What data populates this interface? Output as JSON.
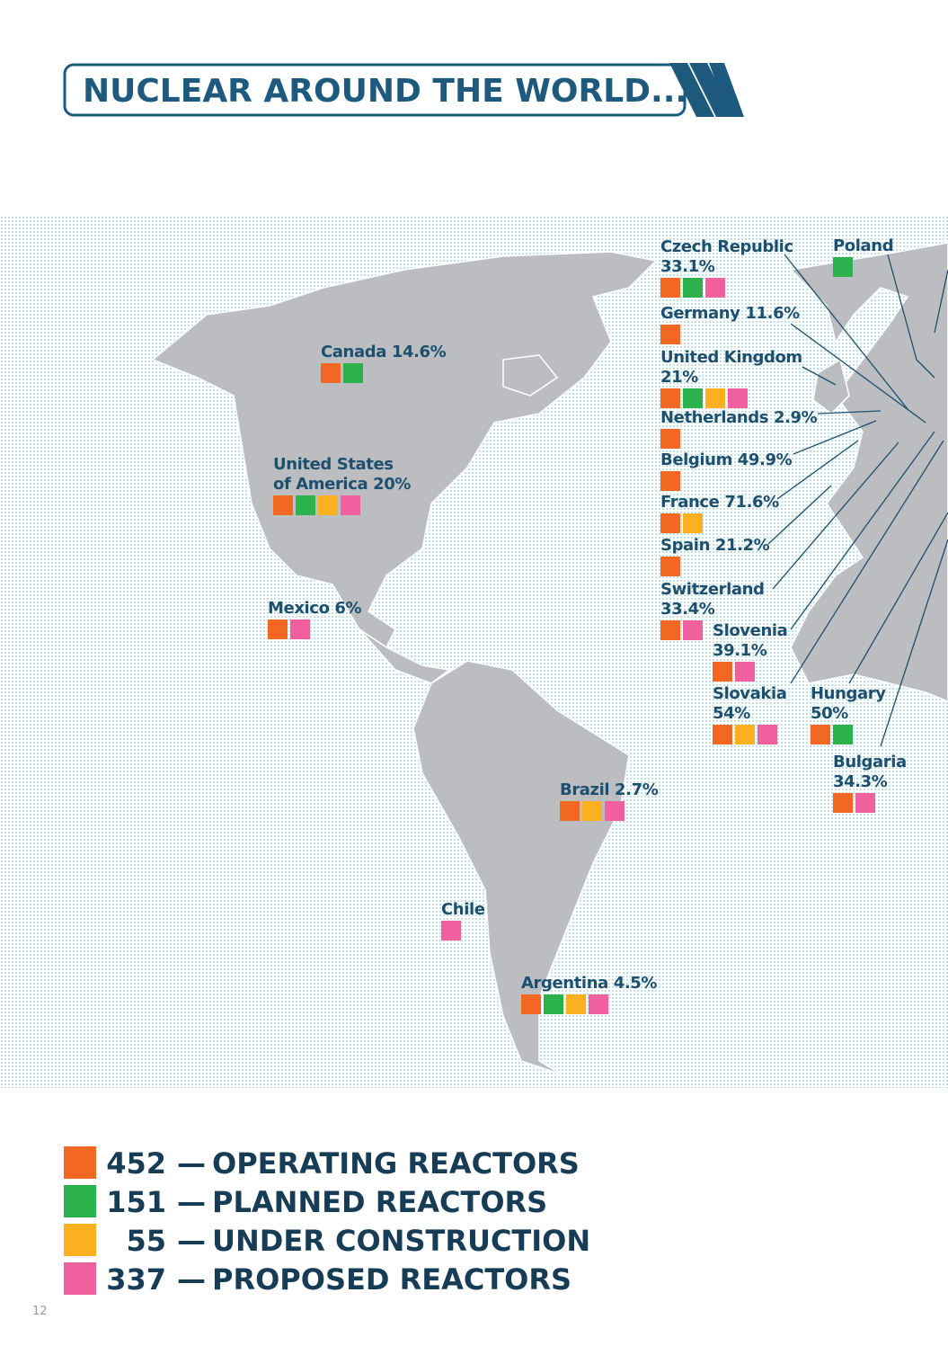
{
  "header": {
    "title": "NUCLEAR AROUND THE WORLD..."
  },
  "countries": [
    {
      "lines": [
        "Czech Republic",
        "33.1%"
      ],
      "squares": [
        0,
        1,
        3
      ]
    },
    {
      "lines": [
        "Poland"
      ],
      "squares": [
        1
      ]
    },
    {
      "lines": [
        "Germany 11.6%"
      ],
      "squares": [
        0
      ]
    },
    {
      "lines": [
        "United Kingdom",
        "21%"
      ],
      "squares": [
        0,
        1,
        2,
        3
      ]
    },
    {
      "lines": [
        "Netherlands 2.9%"
      ],
      "squares": [
        0
      ]
    },
    {
      "lines": [
        "Belgium 49.9%"
      ],
      "squares": [
        0
      ]
    },
    {
      "lines": [
        "France 71.6%"
      ],
      "squares": [
        0,
        2
      ]
    },
    {
      "lines": [
        "Spain 21.2%"
      ],
      "squares": [
        0
      ]
    },
    {
      "lines": [
        "Switzerland",
        "33.4%"
      ],
      "squares": [
        0,
        3
      ]
    },
    {
      "lines": [
        "Slovenia",
        "39.1%"
      ],
      "squares": [
        0,
        3
      ]
    },
    {
      "lines": [
        "Slovakia",
        "54%"
      ],
      "squares": [
        0,
        2,
        3
      ]
    },
    {
      "lines": [
        "Hungary",
        "50%"
      ],
      "squares": [
        0,
        1
      ]
    },
    {
      "lines": [
        "Bulgaria",
        "34.3%"
      ],
      "squares": [
        0,
        3
      ]
    },
    {
      "lines": [
        "Canada 14.6%"
      ],
      "squares": [
        0,
        1
      ]
    },
    {
      "lines": [
        "United States",
        "of America 20%"
      ],
      "squares": [
        0,
        1,
        2,
        3
      ]
    },
    {
      "lines": [
        "Mexico 6%"
      ],
      "squares": [
        0,
        3
      ]
    },
    {
      "lines": [
        "Brazil 2.7%"
      ],
      "squares": [
        0,
        2,
        3
      ]
    },
    {
      "lines": [
        "Chile"
      ],
      "squares": [
        3
      ]
    },
    {
      "lines": [
        "Argentina 4.5%"
      ],
      "squares": [
        0,
        1,
        2,
        3
      ]
    }
  ],
  "legend": {
    "separator": "—",
    "items": [
      {
        "count": 452,
        "label": "OPERATING REACTORS",
        "color": "#f26722"
      },
      {
        "count": 151,
        "label": "PLANNED REACTORS",
        "color": "#2bb24c"
      },
      {
        "count": 55,
        "label": "UNDER CONSTRUCTION",
        "color": "#fbb11f"
      },
      {
        "count": 337,
        "label": "PROPOSED REACTORS",
        "color": "#f0609e"
      }
    ]
  },
  "footer": {
    "page_number": "12"
  }
}
